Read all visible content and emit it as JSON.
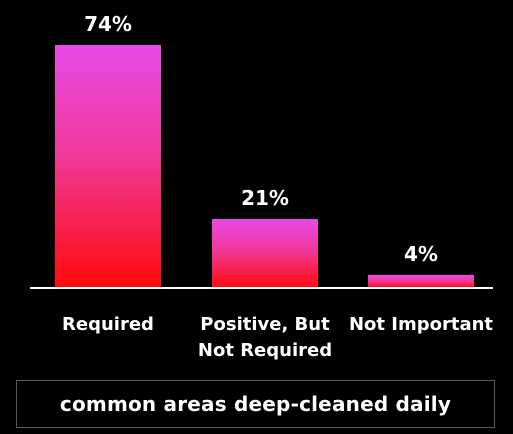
{
  "chart_data": {
    "type": "bar",
    "categories": [
      "Required",
      "Positive, But Not Required",
      "Not Important"
    ],
    "category_lines": [
      [
        "Required"
      ],
      [
        "Positive, But",
        "Not Required"
      ],
      [
        "Not Important"
      ]
    ],
    "values": [
      74,
      21,
      4
    ],
    "value_labels": [
      "74%",
      "21%",
      "4%"
    ],
    "ylim": [
      0,
      74
    ],
    "grid": false,
    "colors": {
      "bar_top": "#e84ae8",
      "bar_bottom": "#ff0a0a",
      "axis": "#ffffff",
      "background": "#000000",
      "text": "#ffffff"
    }
  },
  "caption": "common areas deep-cleaned daily"
}
